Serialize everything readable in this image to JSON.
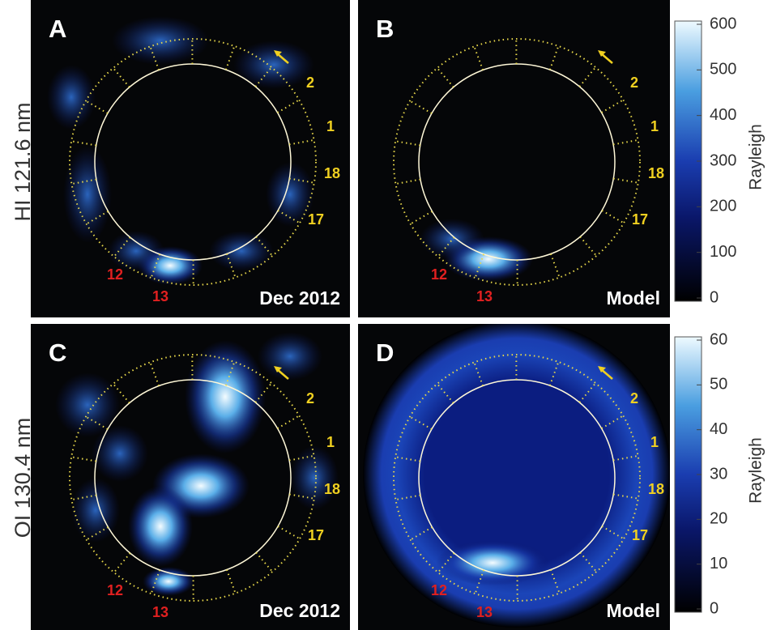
{
  "row_labels": [
    "HI 121.6 nm",
    "OI 130.4 nm"
  ],
  "panels": [
    {
      "letter": "A",
      "caption": "Dec 2012"
    },
    {
      "letter": "B",
      "caption": "Model"
    },
    {
      "letter": "C",
      "caption": "Dec 2012"
    },
    {
      "letter": "D",
      "caption": "Model"
    }
  ],
  "region_labels": {
    "yellow": [
      "2",
      "1",
      "18",
      "17"
    ],
    "red": [
      "12",
      "13"
    ]
  },
  "colorbars": [
    {
      "label": "Rayleigh",
      "lim": [
        0,
        600
      ],
      "ticks": [
        0,
        100,
        200,
        300,
        400,
        500,
        600
      ]
    },
    {
      "label": "Rayleigh",
      "lim": [
        0,
        60
      ],
      "ticks": [
        0,
        10,
        20,
        30,
        40,
        50,
        60
      ]
    }
  ]
}
